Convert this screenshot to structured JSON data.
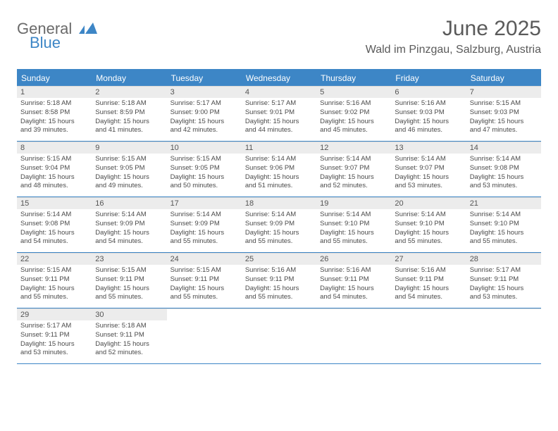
{
  "logo": {
    "word1": "General",
    "word2": "Blue"
  },
  "title": "June 2025",
  "location": "Wald im Pinzgau, Salzburg, Austria",
  "colors": {
    "accent": "#3d86c6",
    "band": "#ececec",
    "text": "#4a4a4a",
    "title_text": "#5a5a5a",
    "background": "#ffffff"
  },
  "weekdays": [
    "Sunday",
    "Monday",
    "Tuesday",
    "Wednesday",
    "Thursday",
    "Friday",
    "Saturday"
  ],
  "weeks": [
    [
      {
        "n": "1",
        "sr": "Sunrise: 5:18 AM",
        "ss": "Sunset: 8:58 PM",
        "dl1": "Daylight: 15 hours",
        "dl2": "and 39 minutes."
      },
      {
        "n": "2",
        "sr": "Sunrise: 5:18 AM",
        "ss": "Sunset: 8:59 PM",
        "dl1": "Daylight: 15 hours",
        "dl2": "and 41 minutes."
      },
      {
        "n": "3",
        "sr": "Sunrise: 5:17 AM",
        "ss": "Sunset: 9:00 PM",
        "dl1": "Daylight: 15 hours",
        "dl2": "and 42 minutes."
      },
      {
        "n": "4",
        "sr": "Sunrise: 5:17 AM",
        "ss": "Sunset: 9:01 PM",
        "dl1": "Daylight: 15 hours",
        "dl2": "and 44 minutes."
      },
      {
        "n": "5",
        "sr": "Sunrise: 5:16 AM",
        "ss": "Sunset: 9:02 PM",
        "dl1": "Daylight: 15 hours",
        "dl2": "and 45 minutes."
      },
      {
        "n": "6",
        "sr": "Sunrise: 5:16 AM",
        "ss": "Sunset: 9:03 PM",
        "dl1": "Daylight: 15 hours",
        "dl2": "and 46 minutes."
      },
      {
        "n": "7",
        "sr": "Sunrise: 5:15 AM",
        "ss": "Sunset: 9:03 PM",
        "dl1": "Daylight: 15 hours",
        "dl2": "and 47 minutes."
      }
    ],
    [
      {
        "n": "8",
        "sr": "Sunrise: 5:15 AM",
        "ss": "Sunset: 9:04 PM",
        "dl1": "Daylight: 15 hours",
        "dl2": "and 48 minutes."
      },
      {
        "n": "9",
        "sr": "Sunrise: 5:15 AM",
        "ss": "Sunset: 9:05 PM",
        "dl1": "Daylight: 15 hours",
        "dl2": "and 49 minutes."
      },
      {
        "n": "10",
        "sr": "Sunrise: 5:15 AM",
        "ss": "Sunset: 9:05 PM",
        "dl1": "Daylight: 15 hours",
        "dl2": "and 50 minutes."
      },
      {
        "n": "11",
        "sr": "Sunrise: 5:14 AM",
        "ss": "Sunset: 9:06 PM",
        "dl1": "Daylight: 15 hours",
        "dl2": "and 51 minutes."
      },
      {
        "n": "12",
        "sr": "Sunrise: 5:14 AM",
        "ss": "Sunset: 9:07 PM",
        "dl1": "Daylight: 15 hours",
        "dl2": "and 52 minutes."
      },
      {
        "n": "13",
        "sr": "Sunrise: 5:14 AM",
        "ss": "Sunset: 9:07 PM",
        "dl1": "Daylight: 15 hours",
        "dl2": "and 53 minutes."
      },
      {
        "n": "14",
        "sr": "Sunrise: 5:14 AM",
        "ss": "Sunset: 9:08 PM",
        "dl1": "Daylight: 15 hours",
        "dl2": "and 53 minutes."
      }
    ],
    [
      {
        "n": "15",
        "sr": "Sunrise: 5:14 AM",
        "ss": "Sunset: 9:08 PM",
        "dl1": "Daylight: 15 hours",
        "dl2": "and 54 minutes."
      },
      {
        "n": "16",
        "sr": "Sunrise: 5:14 AM",
        "ss": "Sunset: 9:09 PM",
        "dl1": "Daylight: 15 hours",
        "dl2": "and 54 minutes."
      },
      {
        "n": "17",
        "sr": "Sunrise: 5:14 AM",
        "ss": "Sunset: 9:09 PM",
        "dl1": "Daylight: 15 hours",
        "dl2": "and 55 minutes."
      },
      {
        "n": "18",
        "sr": "Sunrise: 5:14 AM",
        "ss": "Sunset: 9:09 PM",
        "dl1": "Daylight: 15 hours",
        "dl2": "and 55 minutes."
      },
      {
        "n": "19",
        "sr": "Sunrise: 5:14 AM",
        "ss": "Sunset: 9:10 PM",
        "dl1": "Daylight: 15 hours",
        "dl2": "and 55 minutes."
      },
      {
        "n": "20",
        "sr": "Sunrise: 5:14 AM",
        "ss": "Sunset: 9:10 PM",
        "dl1": "Daylight: 15 hours",
        "dl2": "and 55 minutes."
      },
      {
        "n": "21",
        "sr": "Sunrise: 5:14 AM",
        "ss": "Sunset: 9:10 PM",
        "dl1": "Daylight: 15 hours",
        "dl2": "and 55 minutes."
      }
    ],
    [
      {
        "n": "22",
        "sr": "Sunrise: 5:15 AM",
        "ss": "Sunset: 9:11 PM",
        "dl1": "Daylight: 15 hours",
        "dl2": "and 55 minutes."
      },
      {
        "n": "23",
        "sr": "Sunrise: 5:15 AM",
        "ss": "Sunset: 9:11 PM",
        "dl1": "Daylight: 15 hours",
        "dl2": "and 55 minutes."
      },
      {
        "n": "24",
        "sr": "Sunrise: 5:15 AM",
        "ss": "Sunset: 9:11 PM",
        "dl1": "Daylight: 15 hours",
        "dl2": "and 55 minutes."
      },
      {
        "n": "25",
        "sr": "Sunrise: 5:16 AM",
        "ss": "Sunset: 9:11 PM",
        "dl1": "Daylight: 15 hours",
        "dl2": "and 55 minutes."
      },
      {
        "n": "26",
        "sr": "Sunrise: 5:16 AM",
        "ss": "Sunset: 9:11 PM",
        "dl1": "Daylight: 15 hours",
        "dl2": "and 54 minutes."
      },
      {
        "n": "27",
        "sr": "Sunrise: 5:16 AM",
        "ss": "Sunset: 9:11 PM",
        "dl1": "Daylight: 15 hours",
        "dl2": "and 54 minutes."
      },
      {
        "n": "28",
        "sr": "Sunrise: 5:17 AM",
        "ss": "Sunset: 9:11 PM",
        "dl1": "Daylight: 15 hours",
        "dl2": "and 53 minutes."
      }
    ],
    [
      {
        "n": "29",
        "sr": "Sunrise: 5:17 AM",
        "ss": "Sunset: 9:11 PM",
        "dl1": "Daylight: 15 hours",
        "dl2": "and 53 minutes."
      },
      {
        "n": "30",
        "sr": "Sunrise: 5:18 AM",
        "ss": "Sunset: 9:11 PM",
        "dl1": "Daylight: 15 hours",
        "dl2": "and 52 minutes."
      },
      null,
      null,
      null,
      null,
      null
    ]
  ]
}
